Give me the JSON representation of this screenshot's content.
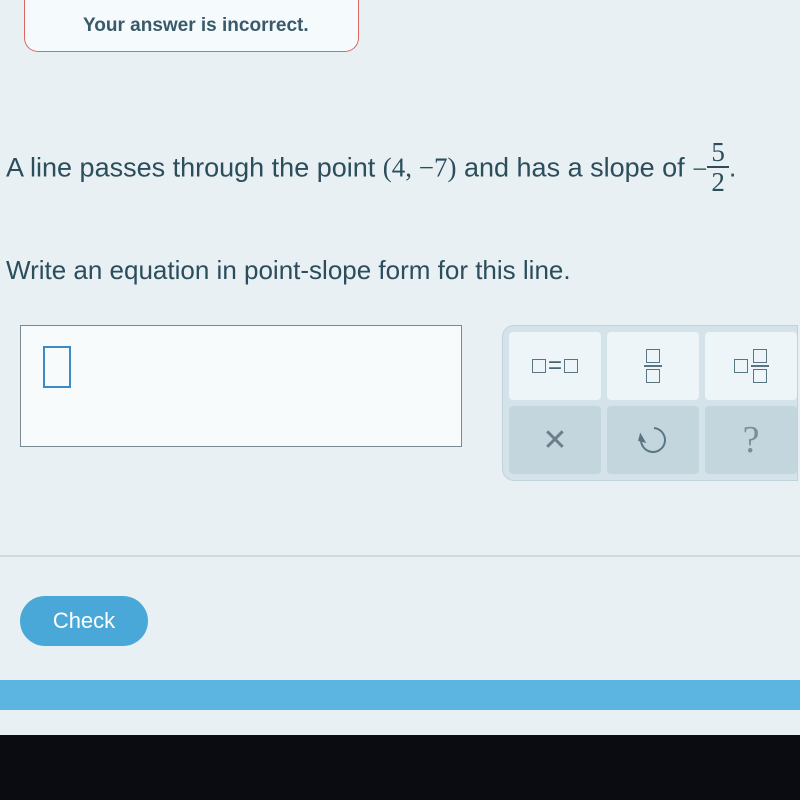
{
  "feedback": {
    "message": "Your answer is incorrect."
  },
  "problem": {
    "prefix": "A line passes through the point ",
    "point": "(4, −7)",
    "mid": " and has a slope of ",
    "slope_sign": "−",
    "slope_num": "5",
    "slope_den": "2",
    "suffix": "."
  },
  "instruction": "Write an equation in point-slope form for this line.",
  "answer": {
    "value": ""
  },
  "keypad": {
    "eq_label": "=",
    "help_label": "?"
  },
  "buttons": {
    "check": "Check"
  },
  "colors": {
    "bg": "#e8f0f3",
    "text": "#2b4d5c",
    "accent": "#4aa8d8",
    "error_border": "#d66"
  }
}
